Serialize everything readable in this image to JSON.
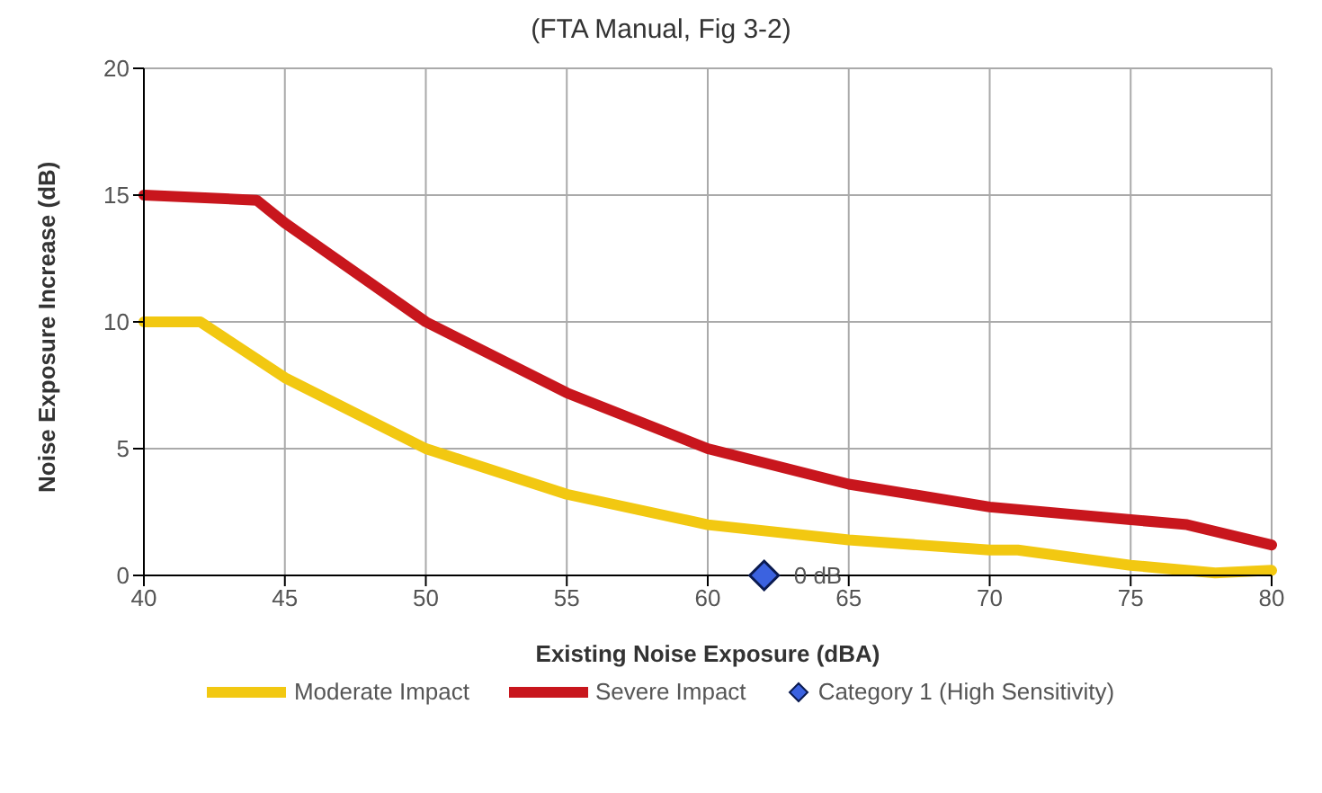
{
  "chart_data": {
    "type": "line",
    "title": "(FTA Manual, Fig 3-2)",
    "xlabel": "Existing Noise Exposure (dBA)",
    "ylabel": "Noise Exposure Increase (dB)",
    "xlim": [
      40,
      80
    ],
    "xticks": [
      40,
      45,
      50,
      55,
      60,
      65,
      70,
      75,
      80
    ],
    "ylim": [
      0,
      20
    ],
    "yticks": [
      0,
      5,
      10,
      15,
      20
    ],
    "grid": true,
    "legend": "bottom",
    "series": [
      {
        "name": "Moderate Impact",
        "color": "#f2c811",
        "marker": "none",
        "x": [
          40,
          42,
          45,
          50,
          55,
          60,
          65,
          70,
          71,
          75,
          78,
          80
        ],
        "values": [
          10,
          10,
          7.8,
          5,
          3.2,
          2,
          1.4,
          1,
          1,
          0.4,
          0.1,
          0.2
        ]
      },
      {
        "name": "Severe Impact",
        "color": "#c8161d",
        "marker": "none",
        "x": [
          40,
          44,
          45,
          50,
          55,
          60,
          65,
          70,
          75,
          77,
          80
        ],
        "values": [
          15,
          14.8,
          13.9,
          10,
          7.2,
          5,
          3.6,
          2.7,
          2.2,
          2,
          1.2
        ]
      },
      {
        "name": "Category 1 (High Sensitivity)",
        "color": "#3b62e0",
        "type": "scatter",
        "marker": "diamond",
        "x": [
          62
        ],
        "values": [
          0
        ],
        "value_labels": [
          "0 dB"
        ]
      }
    ]
  }
}
